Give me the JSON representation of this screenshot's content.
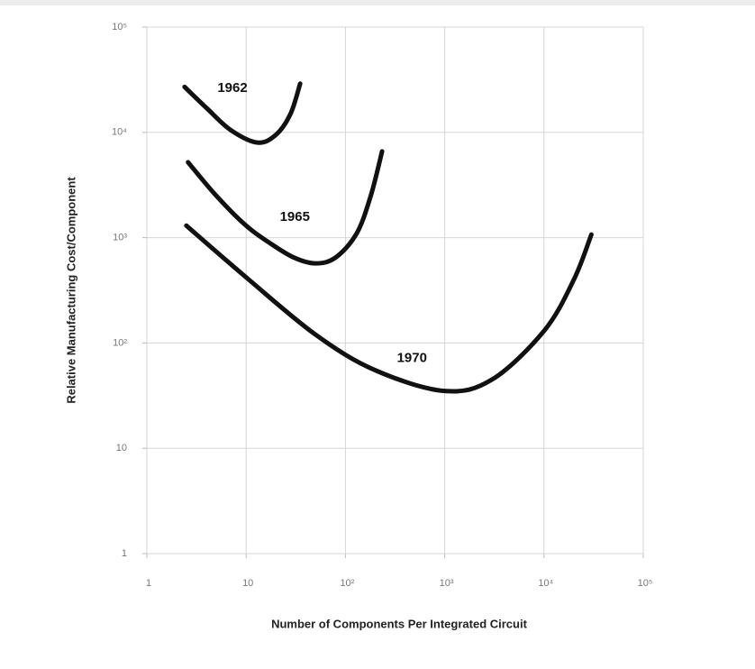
{
  "chart_data": {
    "type": "line",
    "x_label": "Number of Components Per Integrated Circuit",
    "y_label": "Relative Manufacturing Cost/Component",
    "log_x": true,
    "log_y": true,
    "grid": true,
    "xlim": [
      1,
      100000
    ],
    "ylim": [
      1,
      100000
    ],
    "xticks": [
      1,
      10,
      {
        "value": 100,
        "label": "10²"
      },
      {
        "value": 1000,
        "label": "10³"
      },
      {
        "value": 10000,
        "label": "10⁴"
      },
      {
        "value": 100000,
        "label": "10⁵"
      }
    ],
    "yticks": [
      1,
      10,
      {
        "value": 100,
        "label": "10²"
      },
      {
        "value": 1000,
        "label": "10³"
      },
      {
        "value": 10000,
        "label": "10⁴"
      },
      {
        "value": 100000,
        "label": "10⁵"
      }
    ],
    "series": [
      {
        "name": "1962",
        "color": "#111111",
        "x": [
          2.4,
          4,
          7,
          13,
          20,
          28,
          35
        ],
        "values": [
          27000,
          17000,
          10500,
          8000,
          9500,
          15000,
          29000
        ]
      },
      {
        "name": "1965",
        "color": "#111111",
        "x": [
          2.6,
          5,
          10,
          17,
          30,
          50,
          80,
          130,
          180,
          234
        ],
        "values": [
          5200,
          2500,
          1300,
          900,
          650,
          570,
          650,
          1100,
          2500,
          6600
        ]
      },
      {
        "name": "1970",
        "color": "#111111",
        "x": [
          2.5,
          10,
          50,
          200,
          1000,
          3000,
          10000,
          20000,
          30000
        ],
        "values": [
          1300,
          420,
          120,
          55,
          35,
          45,
          130,
          400,
          1070
        ]
      }
    ]
  }
}
